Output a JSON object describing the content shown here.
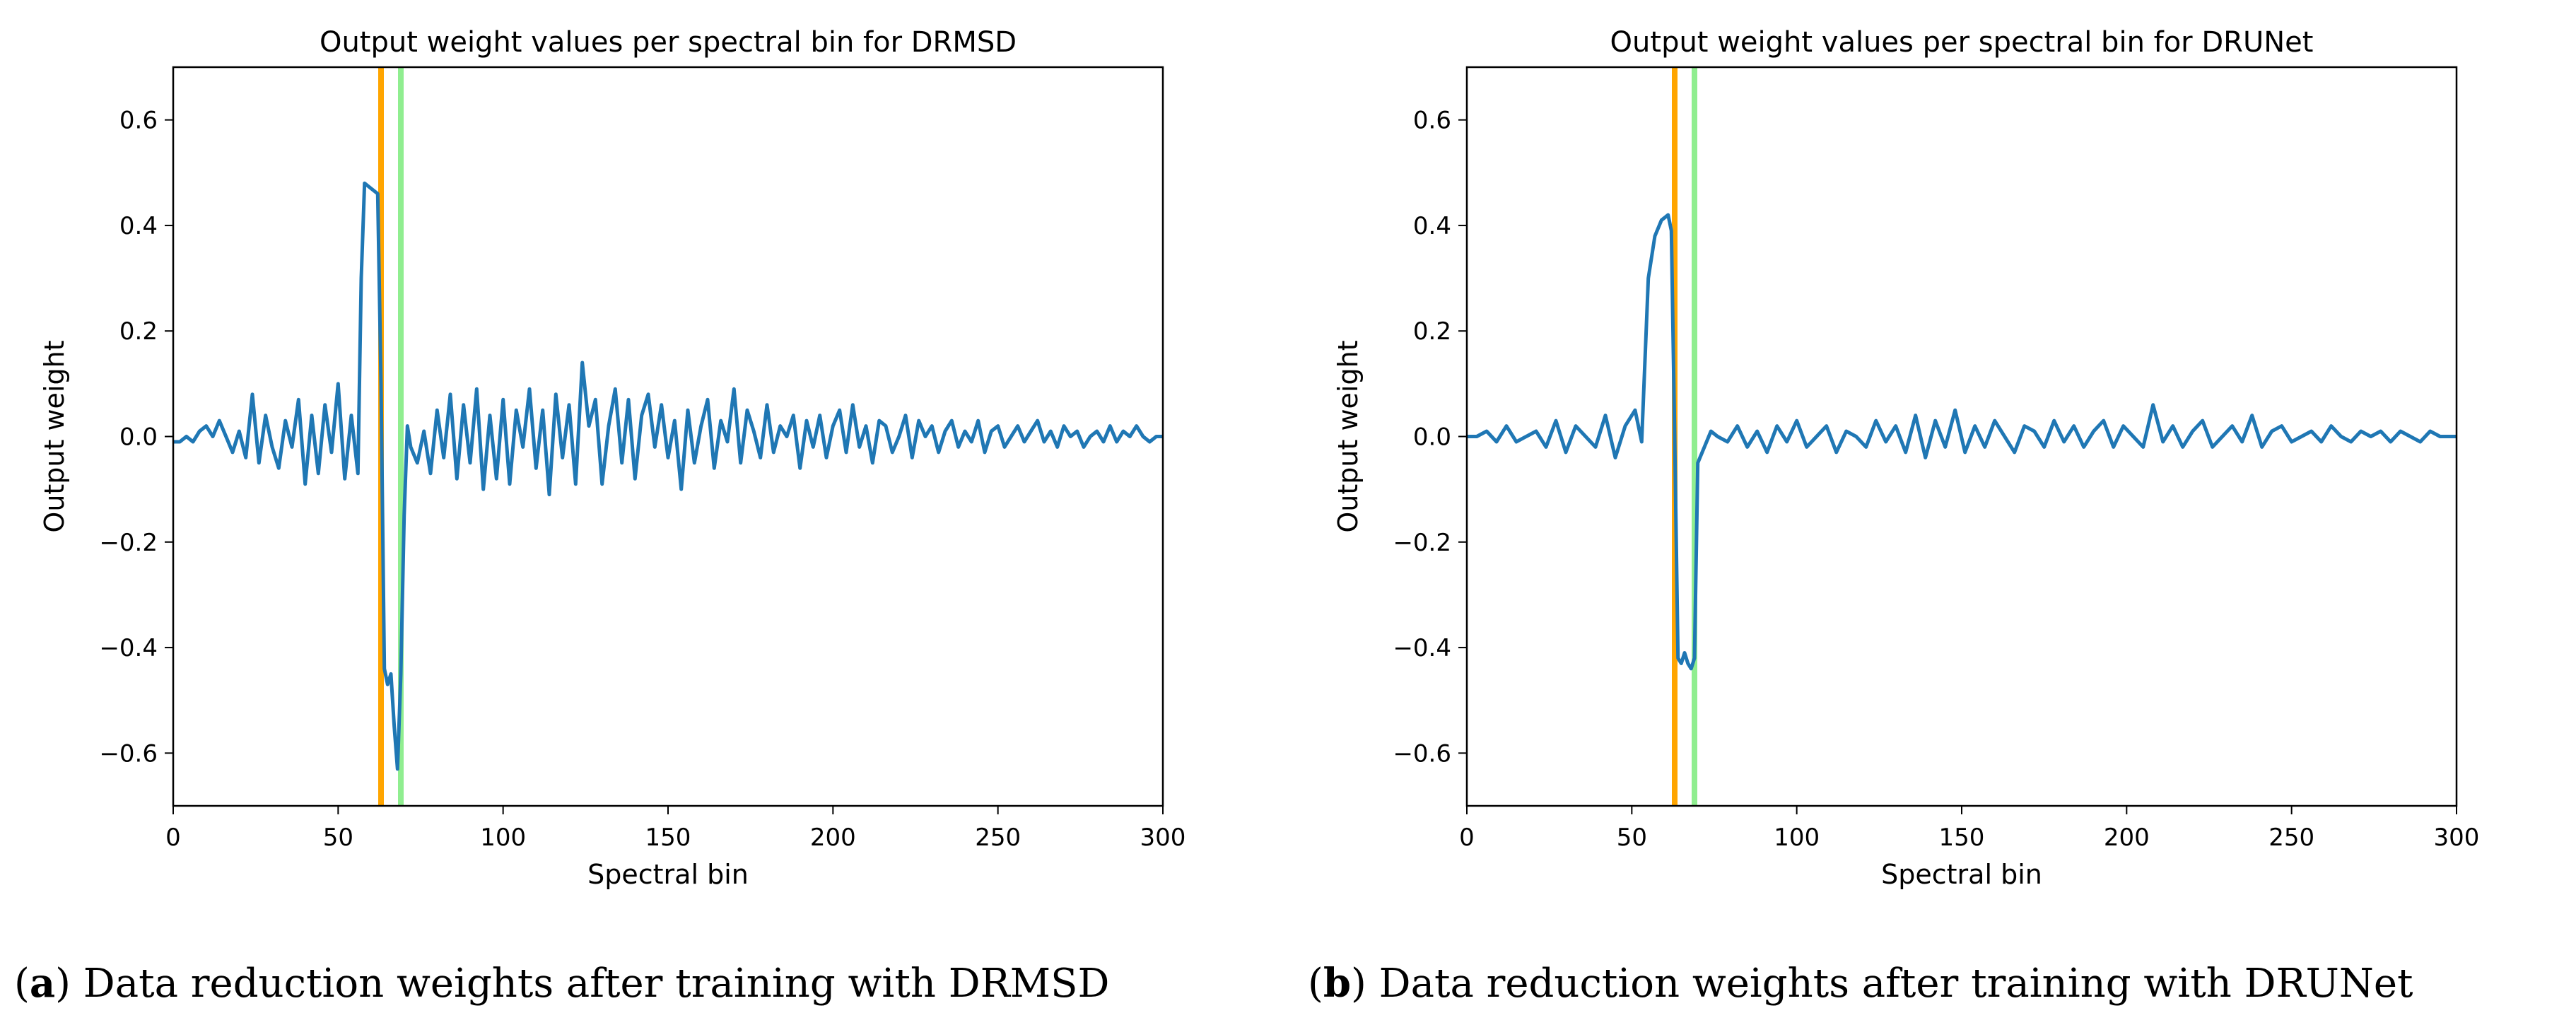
{
  "figure": {
    "panels": [
      {
        "caption_tag": "a",
        "caption_text": ") Data reduction weights after training with DRMSD"
      },
      {
        "caption_tag": "b",
        "caption_text": ") Data reduction weights after training with DRUNet"
      }
    ]
  },
  "chart_data": [
    {
      "type": "line",
      "title": "Output weight values per spectral bin for DRMSD",
      "xlabel": "Spectral bin",
      "ylabel": "Output weight",
      "xlim": [
        0,
        300
      ],
      "ylim": [
        -0.7,
        0.7
      ],
      "x_ticks": [
        0,
        50,
        100,
        150,
        200,
        250,
        300
      ],
      "y_ticks": [
        -0.6,
        -0.4,
        -0.2,
        0.0,
        0.2,
        0.4,
        0.6
      ],
      "y_tick_labels": [
        "−0.6",
        "−0.4",
        "−0.2",
        "0.0",
        "0.2",
        "0.4",
        "0.6"
      ],
      "grid": false,
      "vertical_lines": [
        {
          "x": 63,
          "color": "#ffa500"
        },
        {
          "x": 69,
          "color": "#90ee90"
        }
      ],
      "series": [
        {
          "color": "#1f77b4",
          "x": [
            0,
            2,
            4,
            6,
            8,
            10,
            12,
            14,
            16,
            18,
            20,
            22,
            24,
            26,
            28,
            30,
            32,
            34,
            36,
            38,
            40,
            42,
            44,
            46,
            48,
            50,
            52,
            54,
            56,
            57,
            58,
            60,
            62,
            63,
            64,
            65,
            66,
            67,
            68,
            69,
            70,
            71,
            72,
            74,
            76,
            78,
            80,
            82,
            84,
            86,
            88,
            90,
            92,
            94,
            96,
            98,
            100,
            102,
            104,
            106,
            108,
            110,
            112,
            114,
            116,
            118,
            120,
            122,
            124,
            126,
            128,
            130,
            132,
            134,
            136,
            138,
            140,
            142,
            144,
            146,
            148,
            150,
            152,
            154,
            156,
            158,
            160,
            162,
            164,
            166,
            168,
            170,
            172,
            174,
            176,
            178,
            180,
            182,
            184,
            186,
            188,
            190,
            192,
            194,
            196,
            198,
            200,
            202,
            204,
            206,
            208,
            210,
            212,
            214,
            216,
            218,
            220,
            222,
            224,
            226,
            228,
            230,
            232,
            234,
            236,
            238,
            240,
            242,
            244,
            246,
            248,
            250,
            252,
            254,
            256,
            258,
            260,
            262,
            264,
            266,
            268,
            270,
            272,
            274,
            276,
            278,
            280,
            282,
            284,
            286,
            288,
            290,
            292,
            294,
            296,
            298,
            300
          ],
          "y": [
            -0.01,
            -0.01,
            0.0,
            -0.01,
            0.01,
            0.02,
            0.0,
            0.03,
            0.0,
            -0.03,
            0.01,
            -0.04,
            0.08,
            -0.05,
            0.04,
            -0.02,
            -0.06,
            0.03,
            -0.02,
            0.07,
            -0.09,
            0.04,
            -0.07,
            0.06,
            -0.03,
            0.1,
            -0.08,
            0.04,
            -0.07,
            0.3,
            0.48,
            0.47,
            0.46,
            0.1,
            -0.44,
            -0.47,
            -0.45,
            -0.55,
            -0.63,
            -0.45,
            -0.15,
            0.02,
            -0.02,
            -0.05,
            0.01,
            -0.07,
            0.05,
            -0.04,
            0.08,
            -0.08,
            0.06,
            -0.05,
            0.09,
            -0.1,
            0.04,
            -0.08,
            0.07,
            -0.09,
            0.05,
            -0.02,
            0.09,
            -0.06,
            0.05,
            -0.11,
            0.08,
            -0.04,
            0.06,
            -0.09,
            0.14,
            0.02,
            0.07,
            -0.09,
            0.02,
            0.09,
            -0.05,
            0.07,
            -0.08,
            0.04,
            0.08,
            -0.02,
            0.06,
            -0.04,
            0.03,
            -0.1,
            0.05,
            -0.05,
            0.02,
            0.07,
            -0.06,
            0.03,
            -0.01,
            0.09,
            -0.05,
            0.05,
            0.01,
            -0.04,
            0.06,
            -0.03,
            0.02,
            0.0,
            0.04,
            -0.06,
            0.03,
            -0.02,
            0.04,
            -0.04,
            0.02,
            0.05,
            -0.03,
            0.06,
            -0.02,
            0.02,
            -0.05,
            0.03,
            0.02,
            -0.03,
            0.0,
            0.04,
            -0.04,
            0.03,
            0.0,
            0.02,
            -0.03,
            0.01,
            0.03,
            -0.02,
            0.01,
            -0.01,
            0.03,
            -0.03,
            0.01,
            0.02,
            -0.02,
            0.0,
            0.02,
            -0.01,
            0.01,
            0.03,
            -0.01,
            0.01,
            -0.02,
            0.02,
            0.0,
            0.01,
            -0.02,
            0.0,
            0.01,
            -0.01,
            0.02,
            -0.01,
            0.01,
            0.0,
            0.02,
            0.0,
            -0.01,
            0.0,
            0.0
          ]
        }
      ]
    },
    {
      "type": "line",
      "title": "Output weight values per spectral bin for DRUNet",
      "xlabel": "Spectral bin",
      "ylabel": "Output weight",
      "xlim": [
        0,
        300
      ],
      "ylim": [
        -0.7,
        0.7
      ],
      "x_ticks": [
        0,
        50,
        100,
        150,
        200,
        250,
        300
      ],
      "y_ticks": [
        -0.6,
        -0.4,
        -0.2,
        0.0,
        0.2,
        0.4,
        0.6
      ],
      "y_tick_labels": [
        "−0.6",
        "−0.4",
        "−0.2",
        "0.0",
        "0.2",
        "0.4",
        "0.6"
      ],
      "grid": false,
      "vertical_lines": [
        {
          "x": 63,
          "color": "#ffa500"
        },
        {
          "x": 69,
          "color": "#90ee90"
        }
      ],
      "series": [
        {
          "color": "#1f77b4",
          "x": [
            0,
            3,
            6,
            9,
            12,
            15,
            18,
            21,
            24,
            27,
            30,
            33,
            36,
            39,
            42,
            45,
            48,
            51,
            53,
            55,
            57,
            59,
            61,
            62,
            63,
            64,
            65,
            66,
            67,
            68,
            69,
            70,
            72,
            74,
            76,
            79,
            82,
            85,
            88,
            91,
            94,
            97,
            100,
            103,
            106,
            109,
            112,
            115,
            118,
            121,
            124,
            127,
            130,
            133,
            136,
            139,
            142,
            145,
            148,
            151,
            154,
            157,
            160,
            163,
            166,
            169,
            172,
            175,
            178,
            181,
            184,
            187,
            190,
            193,
            196,
            199,
            202,
            205,
            208,
            211,
            214,
            217,
            220,
            223,
            226,
            229,
            232,
            235,
            238,
            241,
            244,
            247,
            250,
            253,
            256,
            259,
            262,
            265,
            268,
            271,
            274,
            277,
            280,
            283,
            286,
            289,
            292,
            295,
            298,
            300
          ],
          "y": [
            0.0,
            0.0,
            0.01,
            -0.01,
            0.02,
            -0.01,
            0.0,
            0.01,
            -0.02,
            0.03,
            -0.03,
            0.02,
            0.0,
            -0.02,
            0.04,
            -0.04,
            0.02,
            0.05,
            -0.01,
            0.3,
            0.38,
            0.41,
            0.42,
            0.39,
            0.0,
            -0.42,
            -0.43,
            -0.41,
            -0.43,
            -0.44,
            -0.42,
            -0.05,
            -0.02,
            0.01,
            0.0,
            -0.01,
            0.02,
            -0.02,
            0.01,
            -0.03,
            0.02,
            -0.01,
            0.03,
            -0.02,
            0.0,
            0.02,
            -0.03,
            0.01,
            0.0,
            -0.02,
            0.03,
            -0.01,
            0.02,
            -0.03,
            0.04,
            -0.04,
            0.03,
            -0.02,
            0.05,
            -0.03,
            0.02,
            -0.02,
            0.03,
            0.0,
            -0.03,
            0.02,
            0.01,
            -0.02,
            0.03,
            -0.01,
            0.02,
            -0.02,
            0.01,
            0.03,
            -0.02,
            0.02,
            0.0,
            -0.02,
            0.06,
            -0.01,
            0.02,
            -0.02,
            0.01,
            0.03,
            -0.02,
            0.0,
            0.02,
            -0.01,
            0.04,
            -0.02,
            0.01,
            0.02,
            -0.01,
            0.0,
            0.01,
            -0.01,
            0.02,
            0.0,
            -0.01,
            0.01,
            0.0,
            0.01,
            -0.01,
            0.01,
            0.0,
            -0.01,
            0.01,
            0.0,
            0.0,
            0.0
          ]
        }
      ]
    }
  ]
}
